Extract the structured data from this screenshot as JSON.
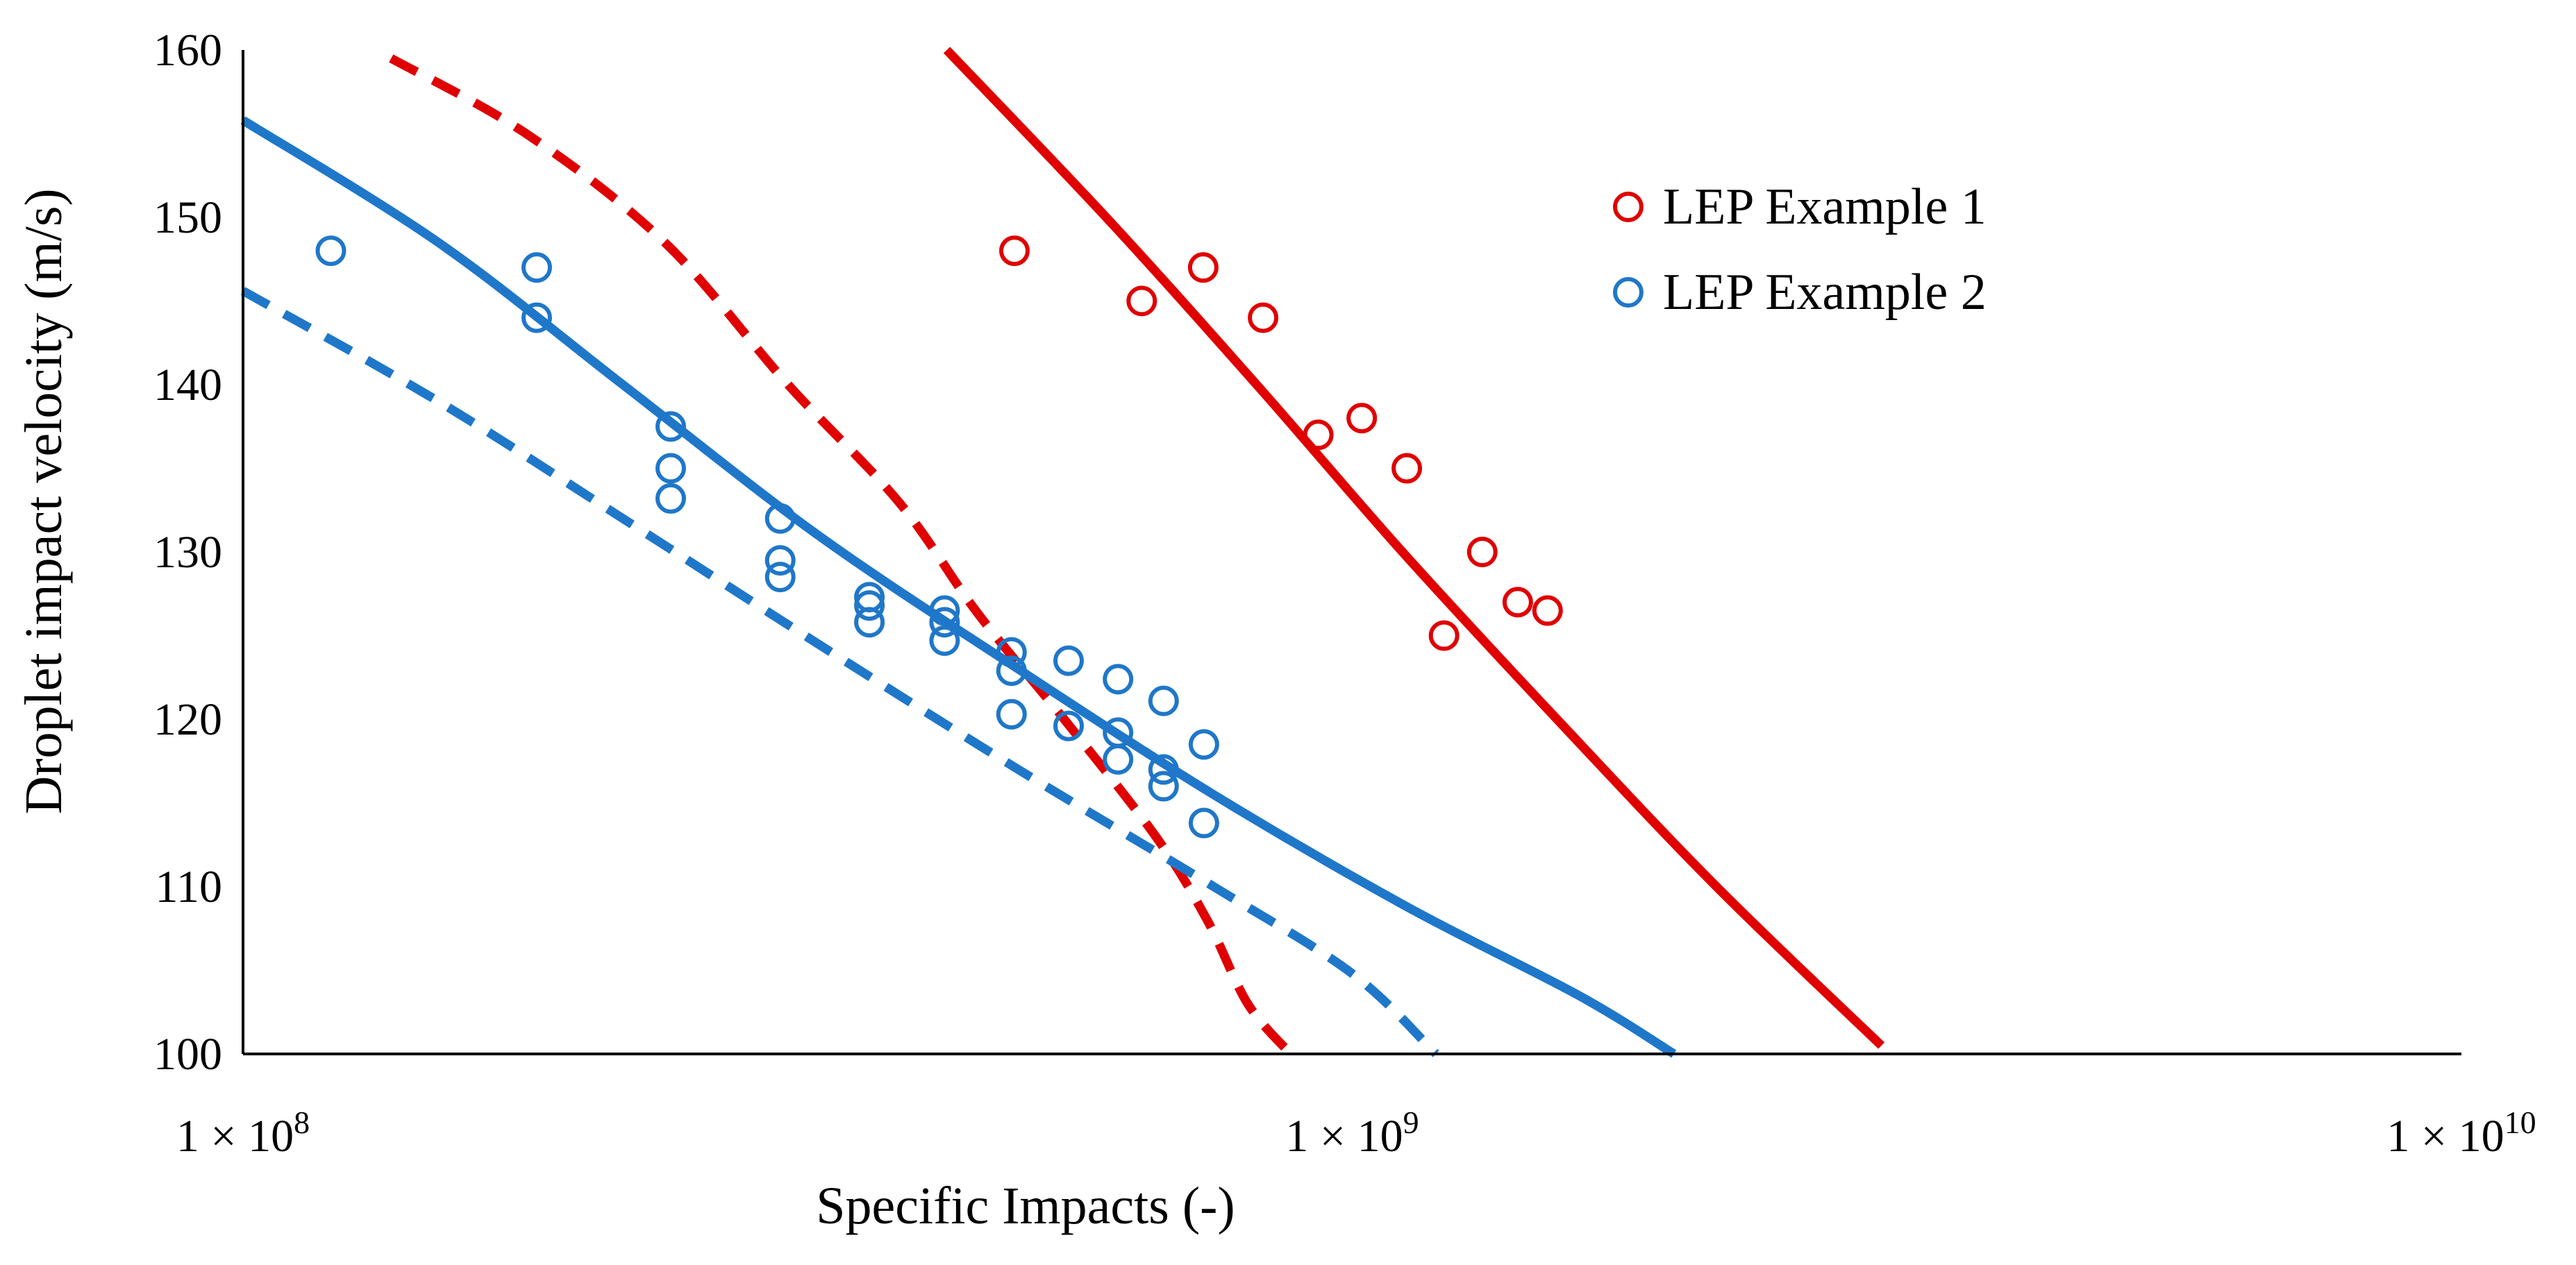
{
  "chart_data": {
    "type": "scatter",
    "title": "",
    "xlabel": "Specific Impacts (-)",
    "ylabel": "Droplet impact velocity (m/s)",
    "xscale": "log",
    "xlim": [
      100000000,
      10000000000
    ],
    "ylim": [
      100,
      160
    ],
    "xticks": [
      {
        "value": 100000000,
        "base": "1 × 10",
        "exp": "8"
      },
      {
        "value": 1000000000,
        "base": "1 × 10",
        "exp": "9"
      },
      {
        "value": 10000000000,
        "base": "1 × 10",
        "exp": "10"
      }
    ],
    "yticks": [
      100,
      110,
      120,
      130,
      140,
      150,
      160
    ],
    "grid": false,
    "legend_position": "top-right",
    "colors": {
      "red": "#e00000",
      "blue": "#1f77c9"
    },
    "series": [
      {
        "name": "LEP Example 1",
        "kind": "points",
        "color": "#e00000",
        "points": [
          [
            496000000,
            148
          ],
          [
            646000000,
            145
          ],
          [
            734000000,
            147
          ],
          [
            831000000,
            144
          ],
          [
            932000000,
            137
          ],
          [
            1020000000,
            138
          ],
          [
            1120000000,
            135
          ],
          [
            1210000000,
            125
          ],
          [
            1310000000,
            130
          ],
          [
            1410000000,
            127
          ],
          [
            1500000000,
            126.5
          ]
        ]
      },
      {
        "name": "LEP Example 2",
        "kind": "points",
        "color": "#1f77c9",
        "points": [
          [
            120000000,
            148
          ],
          [
            184000000,
            147
          ],
          [
            184000000,
            144
          ],
          [
            243000000,
            137.5
          ],
          [
            243000000,
            135
          ],
          [
            243000000,
            133.2
          ],
          [
            305000000,
            132
          ],
          [
            305000000,
            129.5
          ],
          [
            305000000,
            128.5
          ],
          [
            367000000,
            127.3
          ],
          [
            367000000,
            126.8
          ],
          [
            367000000,
            125.8
          ],
          [
            429000000,
            126.5
          ],
          [
            429000000,
            125.8
          ],
          [
            429000000,
            124.7
          ],
          [
            493000000,
            124
          ],
          [
            493000000,
            122.9
          ],
          [
            493000000,
            120.3
          ],
          [
            555000000,
            123.5
          ],
          [
            555000000,
            119.6
          ],
          [
            615000000,
            122.4
          ],
          [
            615000000,
            119.2
          ],
          [
            615000000,
            117.6
          ],
          [
            676000000,
            121.1
          ],
          [
            676000000,
            117
          ],
          [
            676000000,
            116
          ],
          [
            735000000,
            118.5
          ],
          [
            735000000,
            113.8
          ]
        ]
      },
      {
        "name": "",
        "kind": "curve",
        "style": "solid",
        "color": "#e00000",
        "points": [
          [
            431000000,
            160
          ],
          [
            600000000,
            150
          ],
          [
            820000000,
            140
          ],
          [
            1110000000,
            130
          ],
          [
            1530000000,
            120
          ],
          [
            2130000000,
            110
          ],
          [
            3000000000,
            100.5
          ]
        ]
      },
      {
        "name": "",
        "kind": "curve",
        "style": "dashed",
        "color": "#e00000",
        "points": [
          [
            136000000,
            159.5
          ],
          [
            180000000,
            155
          ],
          [
            240000000,
            148.5
          ],
          [
            310000000,
            140
          ],
          [
            390000000,
            133
          ],
          [
            460000000,
            126.3
          ],
          [
            550000000,
            120
          ],
          [
            665000000,
            113
          ],
          [
            740000000,
            108
          ],
          [
            805000000,
            103
          ],
          [
            880000000,
            100
          ]
        ]
      },
      {
        "name": "",
        "kind": "curve",
        "style": "solid",
        "color": "#1f77c9",
        "points": [
          [
            100000000,
            155.8
          ],
          [
            150000000,
            148.5
          ],
          [
            220000000,
            140
          ],
          [
            330000000,
            131
          ],
          [
            500000000,
            123
          ],
          [
            750000000,
            115.5
          ],
          [
            1120000000,
            108.8
          ],
          [
            1600000000,
            103.5
          ],
          [
            1950000000,
            100
          ]
        ]
      },
      {
        "name": "",
        "kind": "curve",
        "style": "dashed",
        "color": "#1f77c9",
        "points": [
          [
            100000000,
            145.6
          ],
          [
            150000000,
            139
          ],
          [
            220000000,
            132
          ],
          [
            330000000,
            124.5
          ],
          [
            500000000,
            117
          ],
          [
            750000000,
            110
          ],
          [
            1000000000,
            104.8
          ],
          [
            1190000000,
            100
          ]
        ]
      }
    ]
  }
}
